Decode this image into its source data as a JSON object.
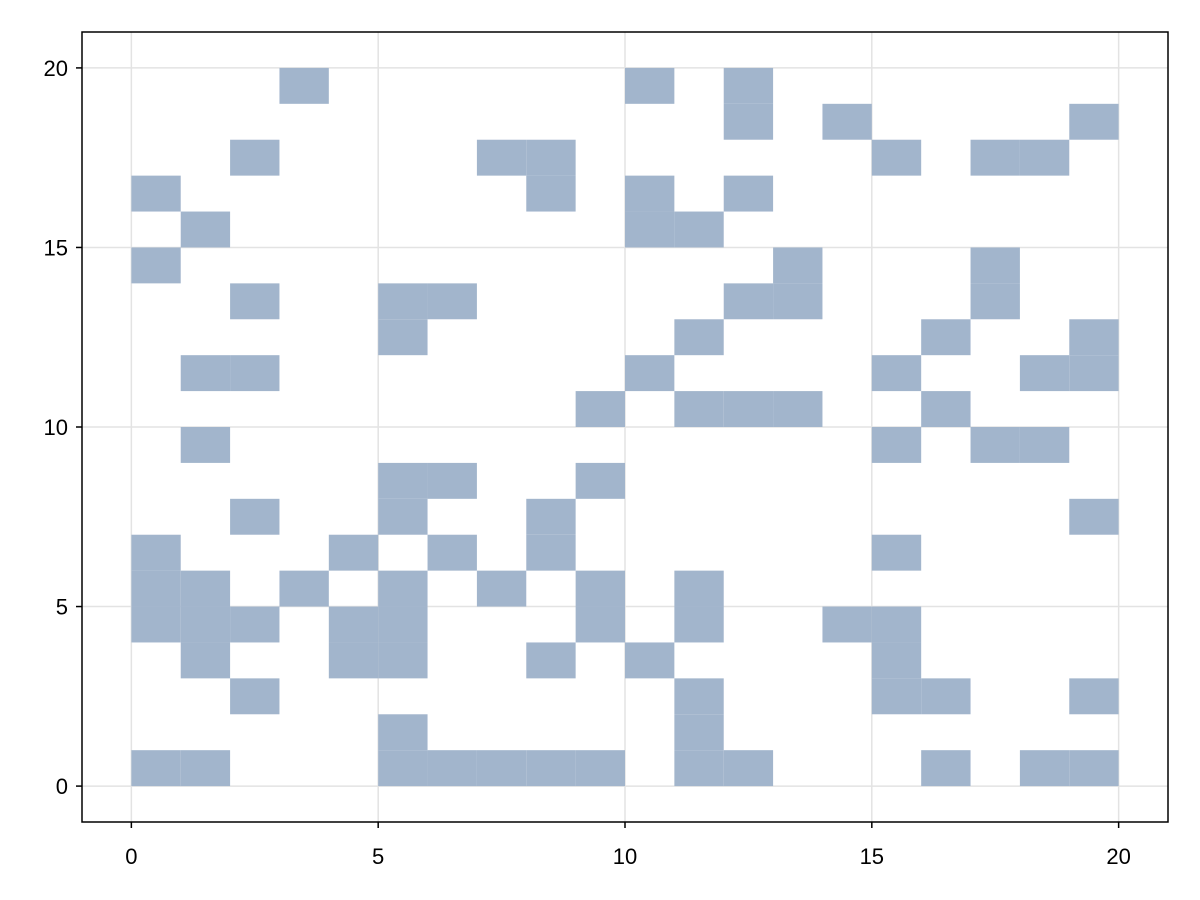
{
  "chart_data": {
    "type": "heatmap",
    "x": [
      0,
      1,
      5,
      6,
      7,
      8,
      9,
      11,
      12,
      16,
      18,
      19,
      5,
      11,
      2,
      11,
      15,
      16,
      19,
      1,
      4,
      5,
      8,
      10,
      15,
      0,
      1,
      2,
      4,
      5,
      9,
      11,
      14,
      15,
      0,
      1,
      3,
      5,
      7,
      9,
      11,
      0,
      4,
      6,
      8,
      15,
      2,
      5,
      8,
      19,
      5,
      6,
      9,
      1,
      15,
      17,
      18,
      9,
      11,
      12,
      13,
      16,
      1,
      2,
      10,
      15,
      18,
      19,
      5,
      11,
      16,
      19,
      2,
      5,
      6,
      12,
      13,
      17,
      0,
      13,
      17,
      1,
      10,
      11,
      0,
      8,
      10,
      12,
      2,
      7,
      8,
      15,
      17,
      18,
      12,
      14,
      19,
      3,
      10,
      12
    ],
    "y": [
      0,
      0,
      0,
      0,
      0,
      0,
      0,
      0,
      0,
      0,
      0,
      0,
      1,
      1,
      2,
      2,
      2,
      2,
      2,
      3,
      3,
      3,
      3,
      3,
      3,
      4,
      4,
      4,
      4,
      4,
      4,
      4,
      4,
      4,
      5,
      5,
      5,
      5,
      5,
      5,
      5,
      6,
      6,
      6,
      6,
      6,
      7,
      7,
      7,
      7,
      8,
      8,
      8,
      9,
      9,
      9,
      9,
      10,
      10,
      10,
      10,
      10,
      11,
      11,
      11,
      11,
      11,
      11,
      12,
      12,
      12,
      12,
      13,
      13,
      13,
      13,
      13,
      13,
      14,
      14,
      14,
      15,
      15,
      15,
      16,
      16,
      16,
      16,
      17,
      17,
      17,
      17,
      17,
      17,
      18,
      18,
      18,
      19,
      19,
      19
    ],
    "color": "#a2b5cc",
    "xlim": [
      -1,
      21
    ],
    "ylim": [
      -1,
      21
    ],
    "xticks": [
      0,
      5,
      10,
      15,
      20
    ],
    "yticks": [
      0,
      5,
      10,
      15,
      20
    ],
    "grid": true
  }
}
